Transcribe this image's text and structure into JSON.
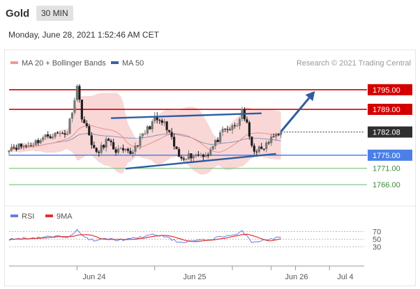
{
  "header": {
    "title": "Gold",
    "timeframe": "30 MIN",
    "timestamp": "Monday, June 28, 2021 1:52:46 AM CET"
  },
  "colors": {
    "resistance": "#d40000",
    "support": "#4a80e8",
    "target": "#7dbf7d",
    "bollinger": "#f7c6c6",
    "ma20": "#ee8585",
    "ma50": "#36649e",
    "arrow": "#2d5d9f",
    "bull": "#777777",
    "bear": "#1f1f1f",
    "rsi": "#6a7ee0",
    "rsi_ma": "#e53030"
  },
  "chart_data": [
    {
      "type": "candlestick",
      "legend": [
        {
          "name": "MA 20 + Bollinger Bands",
          "color": "#f19a9a"
        },
        {
          "name": "MA 50",
          "color": "#36649e"
        }
      ],
      "attribution": "Research © 2021 Trading Central",
      "ylim": [
        1762,
        1799
      ],
      "x_tick_labels": [
        "Jun 24",
        "Jun 25",
        "Jun 26",
        "Jul 4"
      ],
      "levels": [
        {
          "value": 1795.0,
          "label": "1795.00",
          "kind": "resistance"
        },
        {
          "value": 1789.0,
          "label": "1789.00",
          "kind": "resistance"
        },
        {
          "value": 1782.08,
          "label": "1782.08",
          "kind": "last"
        },
        {
          "value": 1775.0,
          "label": "1775.00",
          "kind": "support"
        },
        {
          "value": 1771.0,
          "label": "1771.00",
          "kind": "target"
        },
        {
          "value": 1766.0,
          "label": "1766.00",
          "kind": "target"
        }
      ],
      "channel": {
        "upper": [
          [
            21,
            1786.3
          ],
          [
            52,
            1787.8
          ]
        ],
        "lower": [
          [
            24,
            1770.9
          ],
          [
            55,
            1775.4
          ]
        ]
      },
      "arrow": [
        [
          56,
          1782.2
        ],
        [
          63,
          1794.6
        ]
      ],
      "x_range": [
        0,
        72
      ],
      "key_prices": [
        [
          0,
          1777.5
        ],
        [
          4,
          1778.0
        ],
        [
          8,
          1781.0
        ],
        [
          12,
          1782.0
        ],
        [
          14,
          1796.0
        ],
        [
          15,
          1787.0
        ],
        [
          17,
          1779.0
        ],
        [
          18,
          1775.0
        ],
        [
          20,
          1779.5
        ],
        [
          22,
          1776.5
        ],
        [
          25,
          1775.5
        ],
        [
          28,
          1782.0
        ],
        [
          30,
          1786.0
        ],
        [
          32,
          1784.5
        ],
        [
          35,
          1774.5
        ],
        [
          38,
          1775.0
        ],
        [
          41,
          1775.5
        ],
        [
          44,
          1782.0
        ],
        [
          47,
          1784.0
        ],
        [
          48,
          1789.0
        ],
        [
          49,
          1784.0
        ],
        [
          50,
          1777.0
        ],
        [
          52,
          1776.5
        ],
        [
          55,
          1781.5
        ],
        [
          56,
          1782.08
        ]
      ]
    },
    {
      "type": "line",
      "legend": [
        {
          "name": "RSI",
          "color": "#6a7ee0"
        },
        {
          "name": "9MA",
          "color": "#e53030"
        }
      ],
      "ylim": [
        20,
        80
      ],
      "y_ticks": [
        30,
        50,
        70
      ],
      "levels": [
        30,
        50,
        70
      ],
      "key_rsi": [
        [
          0,
          50
        ],
        [
          4,
          53
        ],
        [
          8,
          56
        ],
        [
          12,
          57
        ],
        [
          14,
          73
        ],
        [
          15,
          60
        ],
        [
          17,
          48
        ],
        [
          18,
          45
        ],
        [
          20,
          52
        ],
        [
          22,
          48
        ],
        [
          25,
          50
        ],
        [
          28,
          58
        ],
        [
          30,
          62
        ],
        [
          32,
          57
        ],
        [
          35,
          42
        ],
        [
          38,
          46
        ],
        [
          41,
          48
        ],
        [
          44,
          58
        ],
        [
          47,
          62
        ],
        [
          48,
          70
        ],
        [
          49,
          60
        ],
        [
          50,
          43
        ],
        [
          52,
          46
        ],
        [
          55,
          53
        ],
        [
          56,
          55
        ]
      ]
    }
  ]
}
